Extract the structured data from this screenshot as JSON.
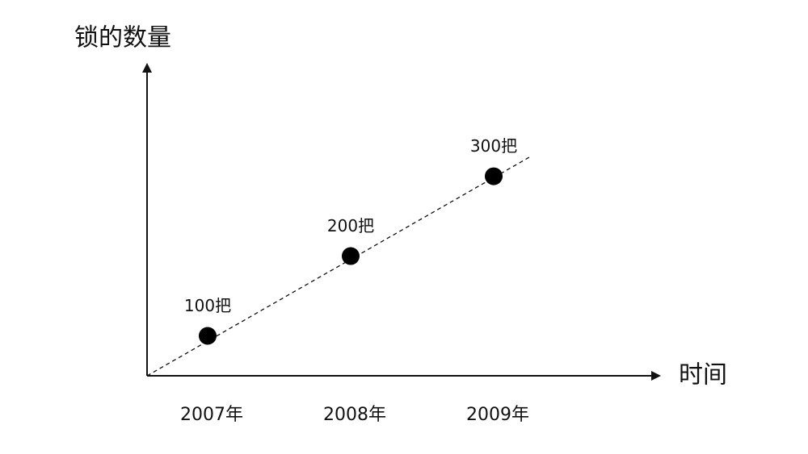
{
  "chart_data": {
    "type": "scatter",
    "y_label": "锁的数量",
    "x_label": "时间",
    "categories": [
      "2007年",
      "2008年",
      "2009年"
    ],
    "values": [
      100,
      200,
      300
    ],
    "value_labels": [
      "100把",
      "200把",
      "300把"
    ],
    "color": "#000000",
    "ylim": [
      50,
      440
    ]
  }
}
